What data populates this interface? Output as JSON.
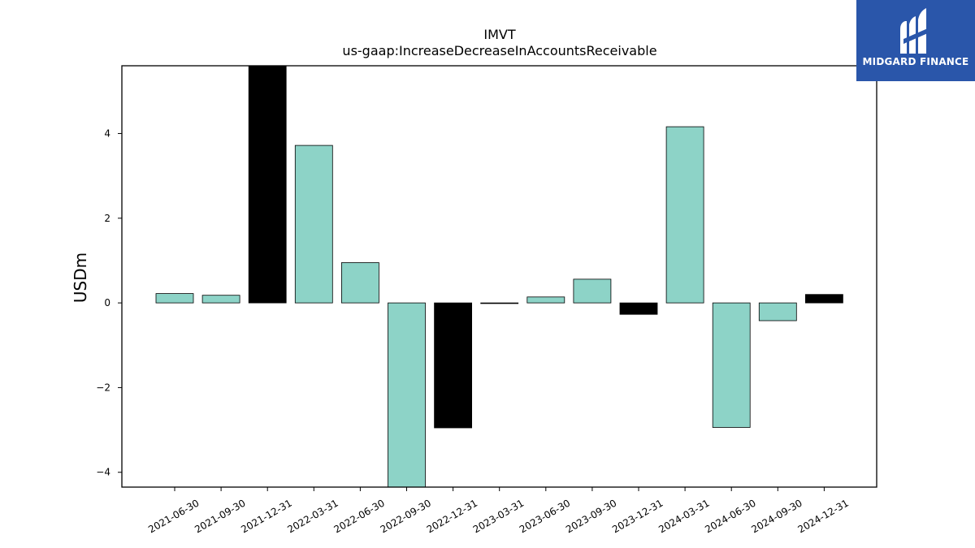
{
  "brand": {
    "name": "MIDGARD FINANCE",
    "icon": "midgard-logo-icon",
    "background": "#2a56aa"
  },
  "chart_data": {
    "type": "bar",
    "title": "IMVT",
    "subtitle": "us-gaap:IncreaseDecreaseInAccountsReceivable",
    "xlabel": "",
    "ylabel": "USDm",
    "ylim": [
      -4.35,
      5.6
    ],
    "yticks": [
      -4,
      -2,
      0,
      2,
      4
    ],
    "ytick_labels": [
      "−4",
      "−2",
      "0",
      "2",
      "4"
    ],
    "grid": false,
    "categories": [
      "2021-06-30",
      "2021-09-30",
      "2021-12-31",
      "2022-03-31",
      "2022-06-30",
      "2022-09-30",
      "2022-12-31",
      "2023-03-31",
      "2023-06-30",
      "2023-09-30",
      "2023-12-31",
      "2024-03-31",
      "2024-06-30",
      "2024-09-30",
      "2024-12-31"
    ],
    "values": [
      0.22,
      0.18,
      5.6,
      3.72,
      0.95,
      -4.35,
      -2.95,
      0.0,
      0.14,
      0.56,
      -0.27,
      4.16,
      -2.94,
      -0.42,
      0.2
    ],
    "highlighted": [
      false,
      false,
      true,
      false,
      false,
      false,
      true,
      false,
      false,
      false,
      true,
      false,
      false,
      false,
      true
    ],
    "colors": {
      "normal": "#8dd3c7",
      "highlight": "#000000",
      "edge": "#000000"
    }
  }
}
